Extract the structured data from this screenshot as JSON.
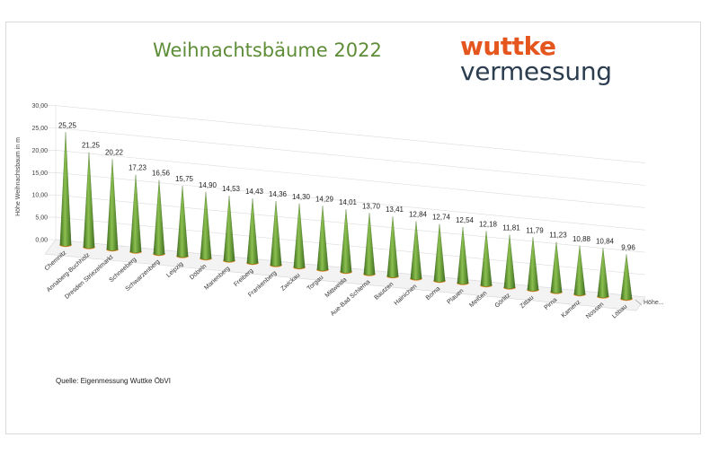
{
  "header": {
    "title": "Weihnachtsbäume 2022",
    "logo_line1": "wuttke",
    "logo_line2": "vermessung"
  },
  "footer": {
    "source": "Quelle: Eigenmessung Wuttke ÖbVI"
  },
  "colors": {
    "title": "#5e8d37",
    "cone_light": "#8bc04f",
    "cone_dark": "#3f6e1f",
    "base": "#e58a2a",
    "logo_top": "#e5561f",
    "logo_bottom": "#2b3d4f"
  },
  "chart_data": {
    "type": "bar",
    "style": "3d-cone",
    "categories": [
      "Chemnitz",
      "Annaberg-Buchholz",
      "Dresden Striezelmarkt",
      "Schneeberg",
      "Schwarzenberg",
      "Leipzig",
      "Döbeln",
      "Marienberg",
      "Freiberg",
      "Frankenberg",
      "Zwickau",
      "Torgau",
      "Mittweida",
      "Aue-Bad Schlema",
      "Bautzen",
      "Hainichen",
      "Borna",
      "Plauen",
      "Meißen",
      "Görlitz",
      "Zittau",
      "Pirna",
      "Kamenz",
      "Nossen",
      "Löbau"
    ],
    "series": [
      {
        "name": "Höhe...",
        "values": [
          25.25,
          21.25,
          20.22,
          17.23,
          16.56,
          15.75,
          14.9,
          14.53,
          14.43,
          14.36,
          14.3,
          14.29,
          14.01,
          13.7,
          13.41,
          12.84,
          12.74,
          12.54,
          12.18,
          11.81,
          11.79,
          11.23,
          10.88,
          10.84,
          9.96
        ]
      }
    ],
    "value_labels": [
      "25,25",
      "21,25",
      "20,22",
      "17,23",
      "16,56",
      "15,75",
      "14,90",
      "14,53",
      "14,43",
      "14,36",
      "14,30",
      "14,29",
      "14,01",
      "13,70",
      "13,41",
      "12,84",
      "12,74",
      "12,54",
      "12,18",
      "11,81",
      "11,79",
      "11,23",
      "10,88",
      "10,84",
      "9,96"
    ],
    "ylabel": "Höhe Weihnachtsbaum in m",
    "yticks": [
      "0,00",
      "5,00",
      "10,00",
      "15,00",
      "20,00",
      "25,00",
      "30,00"
    ],
    "ylim": [
      0,
      30
    ],
    "grid": true,
    "legend": "bottom-right"
  }
}
